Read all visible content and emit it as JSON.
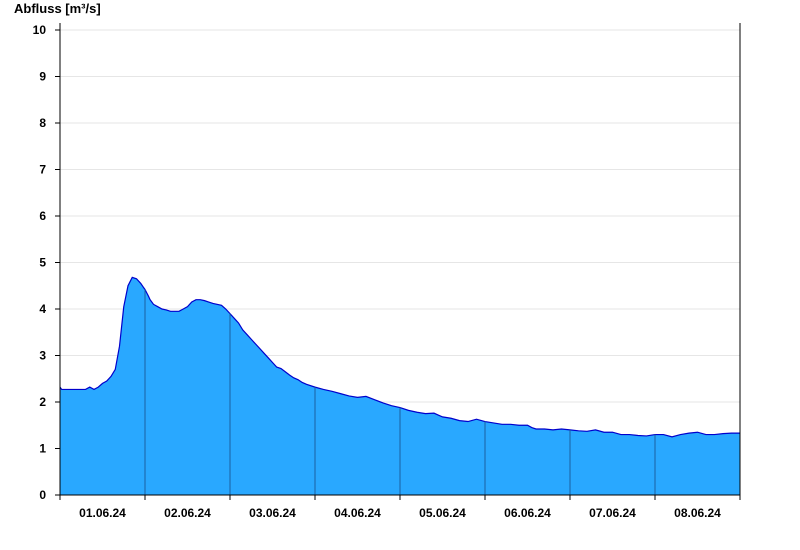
{
  "chart_data": {
    "type": "area",
    "ylabel": "Abfluss [m³/s]",
    "xlabel": "",
    "title": "",
    "ylim": [
      0,
      10
    ],
    "yticks": [
      0,
      1,
      2,
      3,
      4,
      5,
      6,
      7,
      8,
      9,
      10
    ],
    "xlim_days": [
      0,
      8
    ],
    "x_tick_labels": [
      "01.06.24",
      "02.06.24",
      "03.06.24",
      "04.06.24",
      "05.06.24",
      "06.06.24",
      "07.06.24",
      "08.06.24"
    ],
    "grid": "horizontal",
    "colors": {
      "fill": "#29a8ff",
      "line": "#0000cc",
      "day_separator": "#1a5fa0",
      "grid": "#e6e6e6"
    },
    "series": [
      {
        "x_day": [
          0.0,
          0.02,
          0.3,
          0.35,
          0.4,
          0.45,
          0.5,
          0.55,
          0.6,
          0.65,
          0.7,
          0.75,
          0.8,
          0.85,
          0.9,
          0.95,
          0.98,
          1.0,
          1.02,
          1.04,
          1.06,
          1.08,
          1.1,
          1.15,
          1.2,
          1.25,
          1.3,
          1.4,
          1.45,
          1.5,
          1.55,
          1.6,
          1.65,
          1.7,
          1.75,
          1.8,
          1.9,
          1.95,
          2.0,
          2.05,
          2.1,
          2.15,
          2.2,
          2.25,
          2.3,
          2.35,
          2.4,
          2.45,
          2.5,
          2.55,
          2.6,
          2.65,
          2.7,
          2.75,
          2.8,
          2.85,
          2.9,
          3.0,
          3.1,
          3.2,
          3.3,
          3.4,
          3.5,
          3.6,
          3.7,
          3.8,
          3.9,
          4.0,
          4.1,
          4.2,
          4.3,
          4.4,
          4.45,
          4.5,
          4.6,
          4.7,
          4.8,
          4.9,
          5.0,
          5.1,
          5.2,
          5.3,
          5.4,
          5.5,
          5.55,
          5.6,
          5.7,
          5.8,
          5.9,
          6.0,
          6.1,
          6.2,
          6.3,
          6.4,
          6.5,
          6.6,
          6.7,
          6.8,
          6.9,
          7.0,
          7.1,
          7.2,
          7.3,
          7.4,
          7.5,
          7.6,
          7.7,
          7.8,
          7.9,
          8.0
        ],
        "y": [
          2.32,
          2.27,
          2.27,
          2.32,
          2.27,
          2.32,
          2.4,
          2.45,
          2.55,
          2.7,
          3.2,
          4.05,
          4.5,
          4.68,
          4.65,
          4.55,
          4.47,
          4.42,
          4.35,
          4.28,
          4.2,
          4.15,
          4.1,
          4.05,
          4.0,
          3.98,
          3.95,
          3.95,
          4.0,
          4.05,
          4.15,
          4.2,
          4.2,
          4.18,
          4.15,
          4.12,
          4.08,
          4.0,
          3.9,
          3.8,
          3.7,
          3.55,
          3.45,
          3.35,
          3.25,
          3.15,
          3.05,
          2.95,
          2.85,
          2.75,
          2.72,
          2.65,
          2.58,
          2.52,
          2.48,
          2.42,
          2.38,
          2.32,
          2.27,
          2.23,
          2.18,
          2.13,
          2.1,
          2.12,
          2.05,
          1.98,
          1.92,
          1.88,
          1.82,
          1.78,
          1.75,
          1.76,
          1.72,
          1.68,
          1.65,
          1.6,
          1.58,
          1.63,
          1.58,
          1.55,
          1.52,
          1.52,
          1.5,
          1.5,
          1.45,
          1.42,
          1.42,
          1.4,
          1.42,
          1.4,
          1.38,
          1.37,
          1.4,
          1.35,
          1.35,
          1.3,
          1.3,
          1.28,
          1.27,
          1.3,
          1.3,
          1.25,
          1.3,
          1.33,
          1.35,
          1.3,
          1.3,
          1.32,
          1.33,
          1.33
        ]
      }
    ]
  }
}
